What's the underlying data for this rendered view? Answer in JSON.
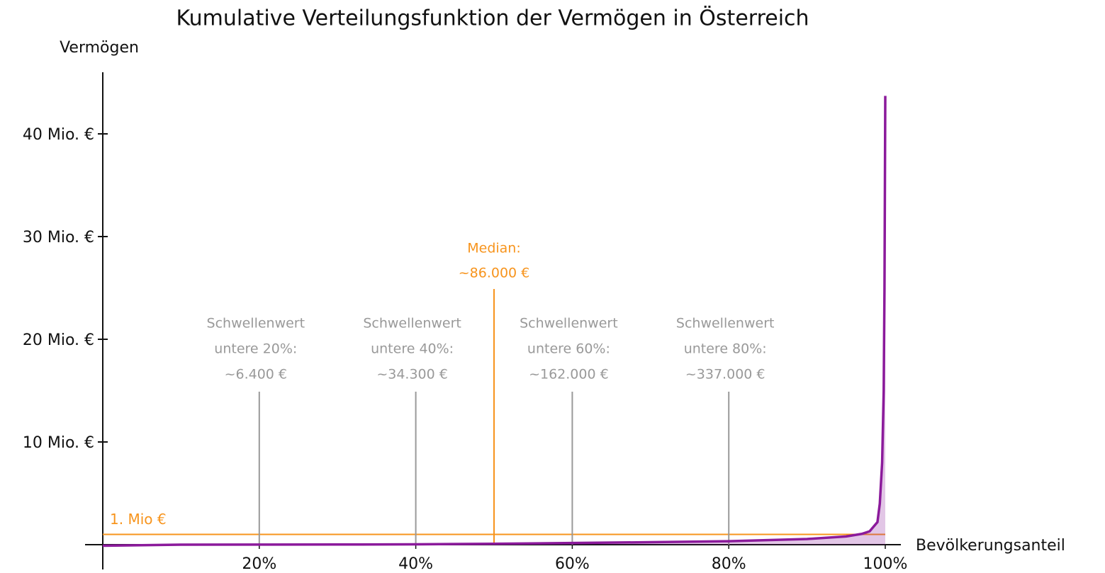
{
  "chart_data": {
    "type": "line",
    "title": "Kumulative Verteilungsfunktion der Vermögen in Österreich",
    "y_label": "Vermögen",
    "x_label": "Bevölkerungsanteil",
    "xlim": [
      0,
      100
    ],
    "ylim": [
      0,
      46
    ],
    "xticks": [
      {
        "value": 20,
        "label": "20%"
      },
      {
        "value": 40,
        "label": "40%"
      },
      {
        "value": 60,
        "label": "60%"
      },
      {
        "value": 80,
        "label": "80%"
      },
      {
        "value": 100,
        "label": "100%"
      }
    ],
    "yticks": [
      {
        "value": 10,
        "label": "10 Mio. €"
      },
      {
        "value": 20,
        "label": "20 Mio. €"
      },
      {
        "value": 30,
        "label": "30 Mio. €"
      },
      {
        "value": 40,
        "label": "40 Mio. €"
      }
    ],
    "x": [
      0,
      10,
      20,
      30,
      40,
      50,
      60,
      70,
      80,
      90,
      95,
      97,
      98,
      99,
      99.3,
      99.6,
      99.8,
      99.9,
      100
    ],
    "series": [
      {
        "name": "Vermögen",
        "color": "#8b1a9b",
        "values": [
          -0.1,
          0.001,
          0.0064,
          0.015,
          0.0343,
          0.086,
          0.162,
          0.24,
          0.337,
          0.55,
          0.8,
          1.05,
          1.3,
          2.2,
          4,
          8,
          15,
          25,
          43.7
        ]
      }
    ],
    "reference_line": {
      "value": 1,
      "label": "1. Mio €",
      "color": "#f7941d"
    },
    "median": {
      "x": 50,
      "value": 0.086,
      "label": "Median:",
      "value_label": "~86.000 €",
      "color": "#f7941d"
    },
    "thresholds": [
      {
        "x": 20,
        "value": 0.0064,
        "text": [
          "Schwellenwert",
          "untere 20%:"
        ],
        "value_label": "~6.400 €"
      },
      {
        "x": 40,
        "value": 0.0343,
        "text": [
          "Schwellenwert",
          "untere 40%:"
        ],
        "value_label": "~34.300 €"
      },
      {
        "x": 60,
        "value": 0.162,
        "text": [
          "Schwellenwert",
          "untere 60%:"
        ],
        "value_label": "~162.000 €"
      },
      {
        "x": 80,
        "value": 0.337,
        "text": [
          "Schwellenwert",
          "untere 80%:"
        ],
        "value_label": "~337.000 €"
      }
    ],
    "threshold_color": "#999999"
  }
}
